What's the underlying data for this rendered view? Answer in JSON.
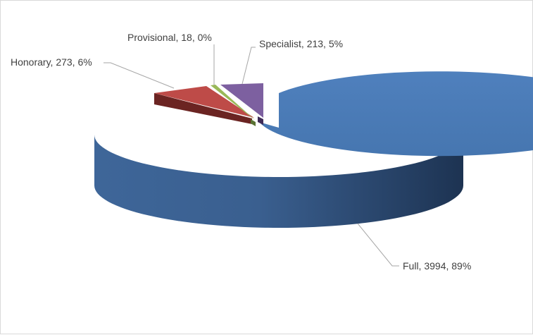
{
  "chart_data": {
    "type": "pie",
    "style": "3d-exploded",
    "slices": [
      {
        "name": "Full",
        "value": 3994,
        "percent": "89%",
        "color": "#4a7ab5"
      },
      {
        "name": "Honorary",
        "value": 273,
        "percent": "6%",
        "color": "#be4b48"
      },
      {
        "name": "Provisional",
        "value": 18,
        "percent": "0%",
        "color": "#99b958"
      },
      {
        "name": "Specialist",
        "value": 213,
        "percent": "5%",
        "color": "#7d60a0"
      }
    ],
    "labels": {
      "full": "Full, 3994, 89%",
      "honorary": "Honorary, 273, 6%",
      "provisional": "Provisional, 18, 0%",
      "specialist": "Specialist, 213, 5%"
    },
    "legend": "none"
  }
}
